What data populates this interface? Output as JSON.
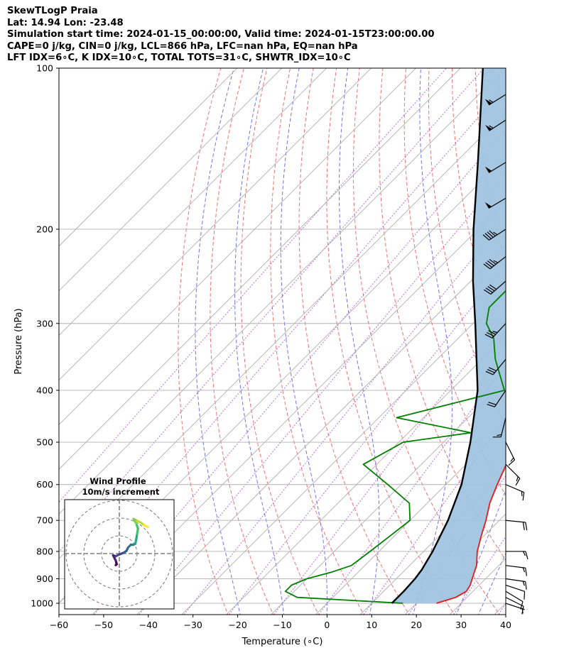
{
  "header": {
    "line1": "SkewTLogP Praia",
    "line2": "Lat: 14.94   Lon: -23.48",
    "line3": "Simulation start time: 2024-01-15_00:00:00, Valid time: 2024-01-15T23:00:00.00",
    "line4": "CAPE=0 j/kg, CIN=0 j/kg, LCL=866 hPa, LFC=nan hPa, EQ=nan hPa",
    "line5": "LFT IDX=6∘C, K IDX=10∘C, TOTAL TOTS=31∘C, SHWTR_IDX=10∘C"
  },
  "chart_data": {
    "type": "skew-t log-p",
    "xlabel": "Temperature (∘C)",
    "ylabel": "Pressure (hPa)",
    "xlim": [
      -60,
      40
    ],
    "ylim": [
      1050,
      100
    ],
    "yscale": "log",
    "xticks": [
      -60,
      -50,
      -40,
      -30,
      -20,
      -10,
      0,
      10,
      20,
      30,
      40
    ],
    "yticks": [
      100,
      200,
      300,
      400,
      500,
      600,
      700,
      800,
      900,
      1000
    ],
    "grid": true,
    "temperature": {
      "color": "#e41a1c",
      "points": [
        [
          1000,
          24.5
        ],
        [
          975,
          27.5
        ],
        [
          950,
          28.5
        ],
        [
          925,
          28
        ],
        [
          900,
          27
        ],
        [
          850,
          25
        ],
        [
          800,
          22
        ],
        [
          750,
          19.5
        ],
        [
          700,
          17
        ],
        [
          650,
          14
        ],
        [
          600,
          11.5
        ],
        [
          550,
          9
        ],
        [
          500,
          6.5
        ],
        [
          475,
          4.5
        ],
        [
          450,
          3
        ],
        [
          420,
          1
        ],
        [
          400,
          -1
        ],
        [
          350,
          -6
        ],
        [
          300,
          -13
        ],
        [
          280,
          -15.5
        ],
        [
          250,
          -19
        ],
        [
          220,
          -24
        ],
        [
          200,
          -28.5
        ],
        [
          185,
          -32
        ],
        [
          170,
          -35
        ],
        [
          155,
          -38
        ],
        [
          140,
          -41
        ],
        [
          130,
          -44
        ],
        [
          120,
          -48
        ],
        [
          110,
          -52
        ],
        [
          100,
          -56
        ]
      ]
    },
    "dewpoint": {
      "color": "#008000",
      "points": [
        [
          1000,
          17
        ],
        [
          975,
          -8
        ],
        [
          950,
          -12
        ],
        [
          925,
          -12
        ],
        [
          900,
          -10
        ],
        [
          875,
          -6
        ],
        [
          850,
          -3
        ],
        [
          800,
          -2
        ],
        [
          750,
          -1
        ],
        [
          700,
          0
        ],
        [
          650,
          -4
        ],
        [
          600,
          -13
        ],
        [
          550,
          -23
        ],
        [
          500,
          -19
        ],
        [
          480,
          -6
        ],
        [
          450,
          -26
        ],
        [
          400,
          -8
        ],
        [
          350,
          -17
        ],
        [
          320,
          -22
        ],
        [
          300,
          -27
        ],
        [
          280,
          -30
        ],
        [
          250,
          -30
        ],
        [
          220,
          -33
        ],
        [
          200,
          -36
        ],
        [
          180,
          -41
        ],
        [
          160,
          -46
        ],
        [
          140,
          -51
        ],
        [
          130,
          -55
        ],
        [
          120,
          -59
        ],
        [
          110,
          -63
        ],
        [
          100,
          -67
        ]
      ]
    },
    "parcel": {
      "color": "#000000",
      "points": [
        [
          1000,
          14.5
        ],
        [
          950,
          14.5
        ],
        [
          900,
          14.2
        ],
        [
          866,
          13.7
        ],
        [
          800,
          12
        ],
        [
          700,
          8.5
        ],
        [
          600,
          3.5
        ],
        [
          500,
          -4
        ],
        [
          400,
          -14
        ],
        [
          300,
          -29.5
        ],
        [
          250,
          -39.5
        ],
        [
          200,
          -51
        ],
        [
          150,
          -65
        ],
        [
          100,
          -85
        ]
      ]
    },
    "shading": {
      "label": "CAPE/CIN area",
      "color": "#a0c4e0"
    },
    "dry_adiabats_K": [
      250,
      260,
      270,
      280,
      290,
      300,
      310,
      320,
      330,
      340,
      350,
      360,
      370,
      380,
      390,
      400,
      410,
      420
    ],
    "moist_adiabats_C": [
      -20,
      -10,
      0,
      10,
      20,
      30,
      35
    ],
    "mixing_ratio_reference_T_C": [
      -80,
      -70,
      -60,
      -50,
      -40,
      -30,
      -20,
      -10,
      0,
      10,
      20,
      30,
      40
    ],
    "isotherm_range_C": [
      -140,
      40
    ],
    "winds": {
      "pressures": [
        1000,
        975,
        950,
        925,
        900,
        850,
        800,
        700,
        600,
        550,
        500,
        450,
        400,
        350,
        300,
        250,
        225,
        200,
        175,
        150,
        125,
        112
      ],
      "u": [
        -3,
        -4,
        -5,
        -6,
        -7,
        -8,
        -9,
        -10,
        -7,
        -5,
        -3,
        2,
        6,
        9,
        12,
        16,
        18,
        20,
        22,
        23,
        23,
        24
      ],
      "v": [
        1,
        2,
        3,
        2,
        1,
        1,
        0,
        1,
        3,
        5,
        6,
        8,
        9,
        11,
        13,
        14,
        14,
        13,
        13,
        14,
        15,
        15
      ]
    },
    "wind_profile": {
      "title_line1": "Wind Profile",
      "title_line2": "10m/s increment",
      "ring_increment_ms": 10,
      "rings": 3,
      "colormap": "viridis",
      "hodograph_uv": [
        [
          -2,
          -6.5
        ],
        [
          -1.5,
          -6
        ],
        [
          -2,
          -4
        ],
        [
          -3.5,
          -1
        ],
        [
          -2,
          -1.5
        ],
        [
          0,
          -0.5
        ],
        [
          2.5,
          0.5
        ],
        [
          4,
          1.5
        ],
        [
          5,
          3.5
        ],
        [
          6.5,
          5
        ],
        [
          8,
          5
        ],
        [
          9,
          5.5
        ],
        [
          9.5,
          8
        ],
        [
          10,
          11
        ],
        [
          10.5,
          14
        ],
        [
          9.5,
          17
        ],
        [
          8,
          19.5
        ],
        [
          10,
          18.5
        ],
        [
          12,
          17.5
        ],
        [
          14,
          16
        ],
        [
          16,
          15
        ]
      ]
    }
  }
}
